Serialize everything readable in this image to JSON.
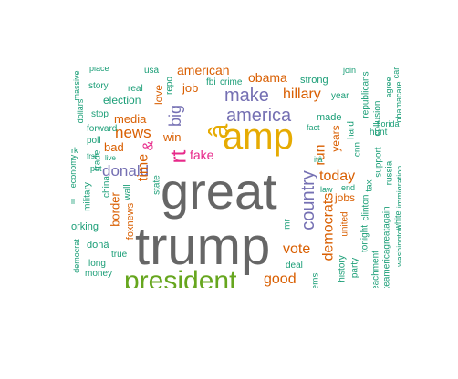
{
  "chart_data": {
    "type": "wordcloud",
    "title": "",
    "colors": {
      "gray": "#666666",
      "orange": "#d95f02",
      "green": "#1b9e77",
      "purple": "#7570b3",
      "pink": "#e7298a",
      "lime": "#66a61e",
      "gold": "#e6ab02"
    },
    "words": [
      {
        "text": "great",
        "color": "gray"
      },
      {
        "text": "trump",
        "color": "gray"
      },
      {
        "text": "president",
        "color": "lime"
      },
      {
        "text": "amp",
        "color": "gold"
      },
      {
        "text": "â",
        "color": "gold"
      },
      {
        "text": "america",
        "color": "purple"
      },
      {
        "text": "make",
        "color": "purple"
      },
      {
        "text": "donald",
        "color": "purple"
      },
      {
        "text": "country",
        "color": "purple"
      },
      {
        "text": "rt",
        "color": "pink"
      },
      {
        "text": "big",
        "color": "purple"
      },
      {
        "text": "news",
        "color": "orange"
      },
      {
        "text": "time",
        "color": "orange"
      },
      {
        "text": "hillary",
        "color": "orange"
      },
      {
        "text": "democrats",
        "color": "orange"
      },
      {
        "text": "run",
        "color": "orange"
      },
      {
        "text": "vote",
        "color": "orange"
      },
      {
        "text": "today",
        "color": "orange"
      },
      {
        "text": "good",
        "color": "orange"
      },
      {
        "text": "obama",
        "color": "orange"
      },
      {
        "text": "american",
        "color": "orange"
      },
      {
        "text": "fake",
        "color": "pink"
      },
      {
        "text": "media",
        "color": "orange"
      },
      {
        "text": "bad",
        "color": "orange"
      },
      {
        "text": "win",
        "color": "orange"
      },
      {
        "text": "job",
        "color": "orange"
      },
      {
        "text": "love",
        "color": "orange"
      },
      {
        "text": "&",
        "color": "pink"
      },
      {
        "text": "border",
        "color": "orange"
      },
      {
        "text": "years",
        "color": "orange"
      },
      {
        "text": "jobs",
        "color": "orange"
      },
      {
        "text": "election",
        "color": "green"
      },
      {
        "text": "made",
        "color": "green"
      },
      {
        "text": "strong",
        "color": "green"
      },
      {
        "text": "fbi",
        "color": "green"
      },
      {
        "text": "crime",
        "color": "green"
      },
      {
        "text": "year",
        "color": "green"
      },
      {
        "text": "poll",
        "color": "green"
      },
      {
        "text": "forward",
        "color": "green"
      },
      {
        "text": "stop",
        "color": "green"
      },
      {
        "text": "story",
        "color": "green"
      },
      {
        "text": "real",
        "color": "green"
      },
      {
        "text": "military",
        "color": "green"
      },
      {
        "text": "trade",
        "color": "green"
      },
      {
        "text": "china",
        "color": "green"
      },
      {
        "text": "foxnews",
        "color": "orange"
      },
      {
        "text": "wall",
        "color": "green"
      },
      {
        "text": "state",
        "color": "green"
      },
      {
        "text": "true",
        "color": "green"
      },
      {
        "text": "long",
        "color": "green"
      },
      {
        "text": "money",
        "color": "green"
      },
      {
        "text": "donâ",
        "color": "green"
      },
      {
        "text": "deal",
        "color": "green"
      },
      {
        "text": "mr",
        "color": "green"
      },
      {
        "text": "united",
        "color": "orange"
      },
      {
        "text": "history",
        "color": "green"
      },
      {
        "text": "party",
        "color": "green"
      },
      {
        "text": "tonight",
        "color": "green"
      },
      {
        "text": "clinton",
        "color": "green"
      },
      {
        "text": "tax",
        "color": "green"
      },
      {
        "text": "republicans",
        "color": "green"
      },
      {
        "text": "collusion",
        "color": "green"
      },
      {
        "text": "support",
        "color": "green"
      },
      {
        "text": "hunt",
        "color": "green"
      },
      {
        "text": "russia",
        "color": "green"
      },
      {
        "text": "florida",
        "color": "green"
      },
      {
        "text": "immigration",
        "color": "green"
      },
      {
        "text": "washington",
        "color": "green"
      },
      {
        "text": "white",
        "color": "green"
      },
      {
        "text": "agree",
        "color": "green"
      },
      {
        "text": "obamacare",
        "color": "green"
      },
      {
        "text": "massive",
        "color": "green"
      },
      {
        "text": "dollars",
        "color": "green"
      },
      {
        "text": "economy",
        "color": "green"
      },
      {
        "text": "democrat",
        "color": "green"
      },
      {
        "text": "orking",
        "color": "green"
      },
      {
        "text": "ill",
        "color": "green"
      },
      {
        "text": "rk",
        "color": "green"
      },
      {
        "text": "usa",
        "color": "green"
      },
      {
        "text": "place",
        "color": "green"
      },
      {
        "text": "repo",
        "color": "green"
      },
      {
        "text": "live",
        "color": "green"
      },
      {
        "text": "put",
        "color": "green"
      },
      {
        "text": "fact",
        "color": "green"
      },
      {
        "text": "law",
        "color": "green"
      },
      {
        "text": "end",
        "color": "green"
      },
      {
        "text": "cnn",
        "color": "green"
      },
      {
        "text": "hard",
        "color": "green"
      },
      {
        "text": "itâ",
        "color": "green"
      },
      {
        "text": "join",
        "color": "green"
      },
      {
        "text": "car",
        "color": "green"
      },
      {
        "text": "ems",
        "color": "green"
      },
      {
        "text": "eachment",
        "color": "green"
      },
      {
        "text": "keamericagreatagain",
        "color": "green"
      },
      {
        "text": "frst",
        "color": "green"
      }
    ]
  }
}
